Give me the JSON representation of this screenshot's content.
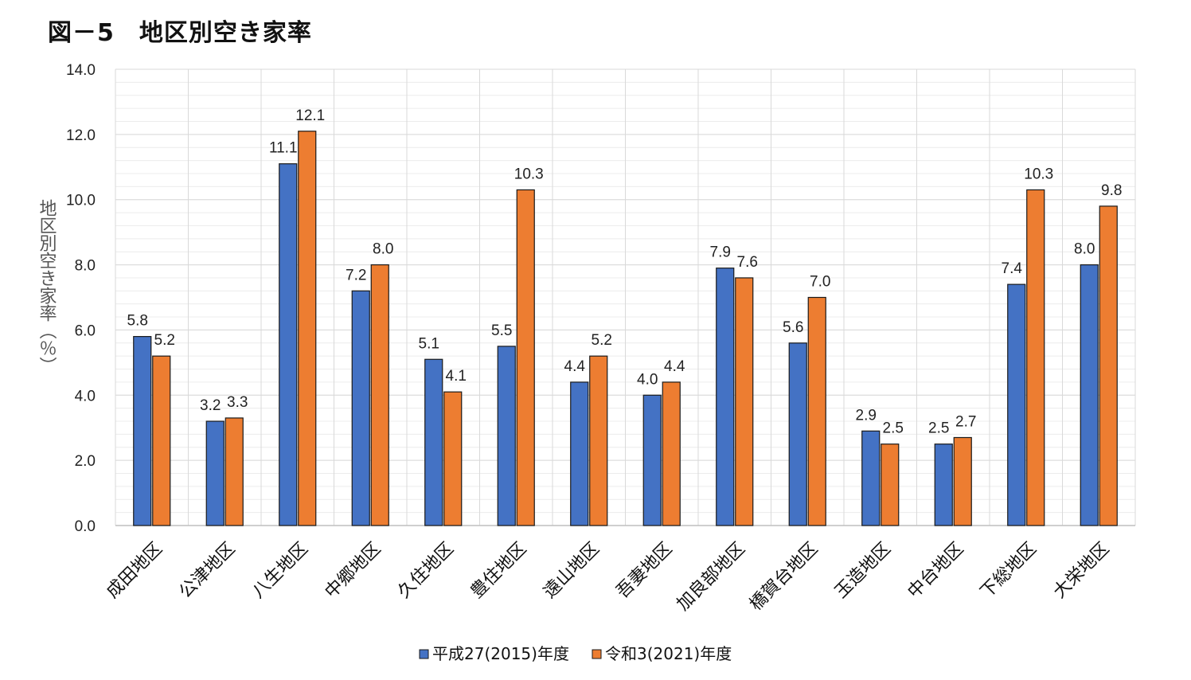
{
  "title": "図－5　地区別空き家率",
  "colors": {
    "series1": "#4472c4",
    "series2": "#ed7d31",
    "grid": "#d9d9d9"
  },
  "chart_data": {
    "type": "bar",
    "title": "図－5　地区別空き家率",
    "ylabel": "地区別空き家率（％）",
    "xlabel": "",
    "ylim": [
      0,
      14
    ],
    "yticks": [
      "0.0",
      "2.0",
      "4.0",
      "6.0",
      "8.0",
      "10.0",
      "12.0",
      "14.0"
    ],
    "grid": true,
    "legend": "bottom",
    "categories": [
      "成田地区",
      "公津地区",
      "八生地区",
      "中郷地区",
      "久住地区",
      "豊住地区",
      "遠山地区",
      "吾妻地区",
      "加良部地区",
      "橋賀台地区",
      "玉造地区",
      "中台地区",
      "下総地区",
      "大栄地区"
    ],
    "series": [
      {
        "name": "平成27(2015)年度",
        "values": [
          5.8,
          3.2,
          11.1,
          7.2,
          5.1,
          5.5,
          4.4,
          4.0,
          7.9,
          5.6,
          2.9,
          2.5,
          7.4,
          8.0
        ],
        "labels": [
          "5.8",
          "3.2",
          "11.1",
          "7.2",
          "5.1",
          "5.5",
          "4.4",
          "4.0",
          "7.9",
          "5.6",
          "2.9",
          "2.5",
          "7.4",
          "8.0"
        ]
      },
      {
        "name": "令和3(2021)年度",
        "values": [
          5.2,
          3.3,
          12.1,
          8.0,
          4.1,
          10.3,
          5.2,
          4.4,
          7.6,
          7.0,
          2.5,
          2.7,
          10.3,
          9.8
        ],
        "labels": [
          "5.2",
          "3.3",
          "12.1",
          "8.0",
          "4.1",
          "10.3",
          "5.2",
          "4.4",
          "7.6",
          "7.0",
          "2.5",
          "2.7",
          "10.3",
          "9.8"
        ]
      }
    ]
  }
}
